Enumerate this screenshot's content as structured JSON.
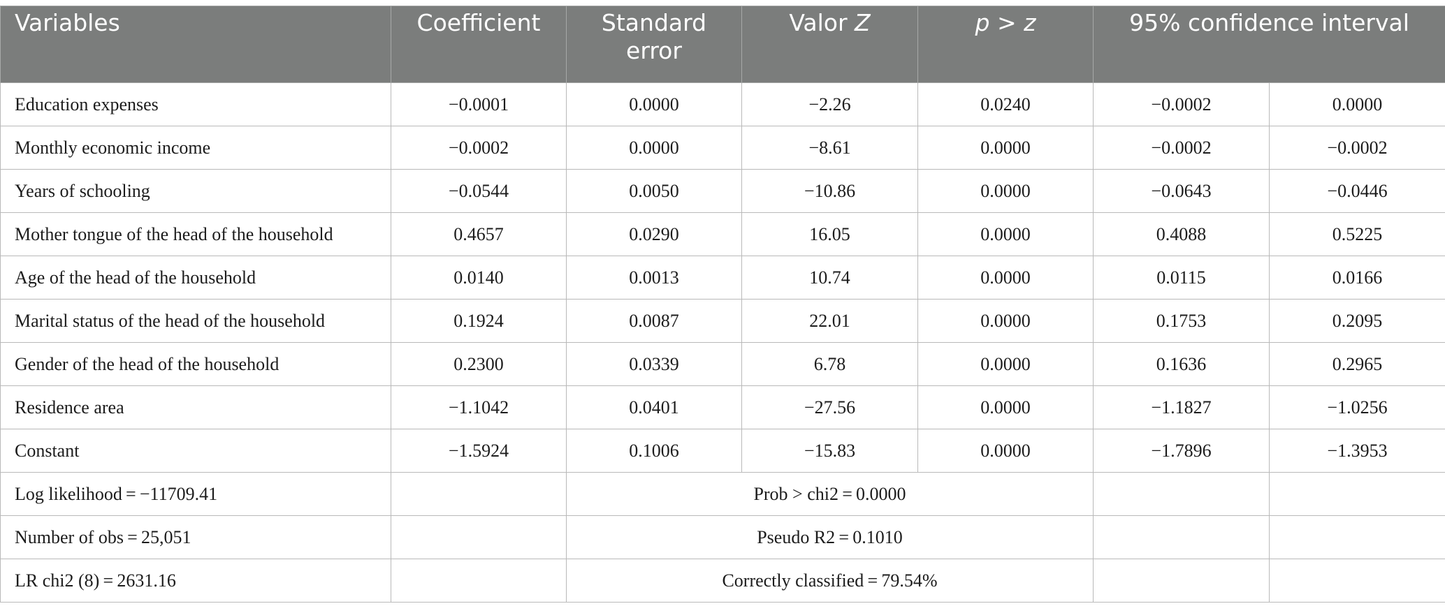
{
  "headers": {
    "variables": "Variables",
    "coefficient": "Coefficient",
    "standard_error_line1": "Standard",
    "standard_error_line2": "error",
    "z_prefix": "Valor",
    "z_italic": "Z",
    "p_italic_p": "p",
    "p_operator": " > ",
    "p_italic_z": "z",
    "ci": "95% confidence interval"
  },
  "rows": [
    {
      "variable": "Education expenses",
      "coef": "−0.0001",
      "se": "0.0000",
      "z": "−2.26",
      "p": "0.0240",
      "ci_low": "−0.0002",
      "ci_high": "0.0000"
    },
    {
      "variable": "Monthly economic income",
      "coef": "−0.0002",
      "se": "0.0000",
      "z": "−8.61",
      "p": "0.0000",
      "ci_low": "−0.0002",
      "ci_high": "−0.0002"
    },
    {
      "variable": "Years of schooling",
      "coef": "−0.0544",
      "se": "0.0050",
      "z": "−10.86",
      "p": "0.0000",
      "ci_low": "−0.0643",
      "ci_high": "−0.0446"
    },
    {
      "variable": "Mother tongue of the head of the household",
      "coef": "0.4657",
      "se": "0.0290",
      "z": "16.05",
      "p": "0.0000",
      "ci_low": "0.4088",
      "ci_high": "0.5225"
    },
    {
      "variable": "Age of the head of the household",
      "coef": "0.0140",
      "se": "0.0013",
      "z": "10.74",
      "p": "0.0000",
      "ci_low": "0.0115",
      "ci_high": "0.0166"
    },
    {
      "variable": "Marital status of the head of the household",
      "coef": "0.1924",
      "se": "0.0087",
      "z": "22.01",
      "p": "0.0000",
      "ci_low": "0.1753",
      "ci_high": "0.2095"
    },
    {
      "variable": "Gender of the head of the household",
      "coef": "0.2300",
      "se": "0.0339",
      "z": "6.78",
      "p": "0.0000",
      "ci_low": "0.1636",
      "ci_high": "0.2965"
    },
    {
      "variable": "Residence area",
      "coef": "−1.1042",
      "se": "0.0401",
      "z": "−27.56",
      "p": "0.0000",
      "ci_low": "−1.1827",
      "ci_high": "−1.0256"
    },
    {
      "variable": "Constant",
      "coef": "−1.5924",
      "se": "0.1006",
      "z": "−15.83",
      "p": "0.0000",
      "ci_low": "−1.7896",
      "ci_high": "−1.3953"
    }
  ],
  "stats": [
    {
      "left": "Log likelihood = −11709.41",
      "center": "Prob > chi2 = 0.0000"
    },
    {
      "left": "Number of obs = 25,051",
      "center": "Pseudo R2 = 0.1010"
    },
    {
      "left": "LR chi2 (8) = 2631.16",
      "center": "Correctly classified = 79.54%"
    }
  ]
}
